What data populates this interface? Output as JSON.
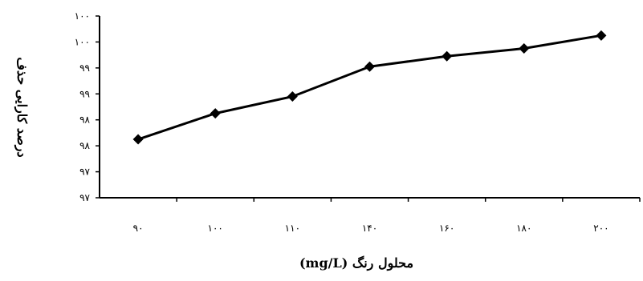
{
  "chart_data": {
    "type": "line",
    "title": "",
    "xlabel": "محلول رنگ (mg/L)",
    "ylabel": "درصد کارایی حذف",
    "categories": [
      "۹۰",
      "۱۰۰",
      "۱۱۰",
      "۱۴۰",
      "۱۶۰",
      "۱۸۰",
      "۲۰۰"
    ],
    "x": [
      90,
      100,
      110,
      140,
      160,
      180,
      200
    ],
    "y_tick_labels": [
      "۹۷",
      "۹۷",
      "۹۸",
      "۹۸",
      "۹۹",
      "۹۹",
      "۱۰۰",
      "۱۰۰"
    ],
    "ylim": [
      0,
      7
    ],
    "series": [
      {
        "values": [
          2.25,
          3.25,
          3.9,
          5.05,
          5.45,
          5.75,
          6.25
        ],
        "color": "#000000",
        "marker": "diamond"
      }
    ],
    "grid": false,
    "legend": "none"
  }
}
